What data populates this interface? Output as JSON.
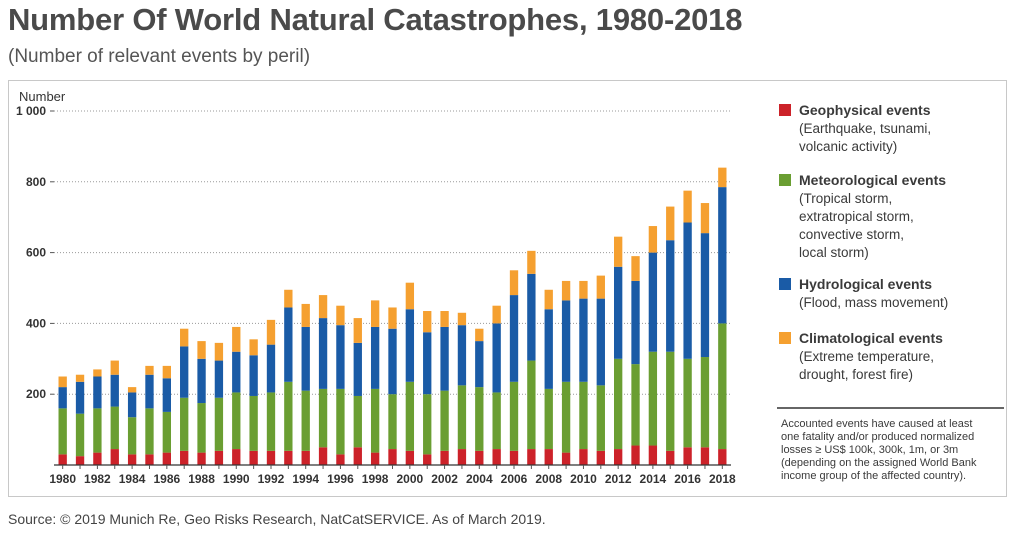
{
  "title": "Number Of World Natural Catastrophes, 1980-2018",
  "subtitle": "(Number of relevant events by peril)",
  "source": "Source: © 2019 Munich Re, Geo Risks Research, NatCatSERVICE. As of March 2019.",
  "note_lines": [
    "Accounted events have caused at least",
    "one fatality and/or produced normalized",
    "losses ≥ US$ 100k, 300k, 1m, or 3m",
    "(depending on the assigned World Bank",
    "income group of the affected country)."
  ],
  "legend": [
    {
      "title": "Geophysical events",
      "desc": [
        "(Earthquake, tsunami,",
        "volcanic activity)"
      ],
      "color": "#cc2229"
    },
    {
      "title": "Meteorological events",
      "desc": [
        "(Tropical storm,",
        "extratropical storm,",
        "convective storm,",
        "local storm)"
      ],
      "color": "#6a9e32"
    },
    {
      "title": "Hydrological events",
      "desc": [
        "(Flood, mass movement)"
      ],
      "color": "#1a5ba6"
    },
    {
      "title": "Climatological events",
      "desc": [
        "(Extreme temperature,",
        "drought, forest fire)"
      ],
      "color": "#f5a030"
    }
  ],
  "chart_data": {
    "type": "bar",
    "stacked": true,
    "title": "Number Of World Natural Catastrophes, 1980-2018",
    "ylabel": "Number",
    "ylim": [
      0,
      1000
    ],
    "yticks": [
      200,
      400,
      600,
      800,
      1000
    ],
    "ytick_labels": [
      "200",
      "400",
      "600",
      "800",
      "1 000"
    ],
    "grid": "horizontal dotted",
    "legend_position": "right",
    "categories": [
      1980,
      1981,
      1982,
      1983,
      1984,
      1985,
      1986,
      1987,
      1988,
      1989,
      1990,
      1991,
      1992,
      1993,
      1994,
      1995,
      1996,
      1997,
      1998,
      1999,
      2000,
      2001,
      2002,
      2003,
      2004,
      2005,
      2006,
      2007,
      2008,
      2009,
      2010,
      2011,
      2012,
      2013,
      2014,
      2015,
      2016,
      2017,
      2018
    ],
    "xtick_labels": [
      "1980",
      "1982",
      "1984",
      "1986",
      "1988",
      "1990",
      "1992",
      "1994",
      "1996",
      "1998",
      "2000",
      "2002",
      "2004",
      "2006",
      "2008",
      "2010",
      "2012",
      "2014",
      "2016",
      "2018"
    ],
    "series": [
      {
        "name": "Geophysical events",
        "color": "#cc2229",
        "values": [
          30,
          25,
          35,
          45,
          30,
          30,
          35,
          40,
          35,
          40,
          45,
          40,
          40,
          40,
          40,
          50,
          30,
          50,
          35,
          45,
          40,
          30,
          40,
          45,
          40,
          45,
          40,
          45,
          45,
          35,
          45,
          40,
          45,
          55,
          55,
          40,
          50,
          50,
          45
        ]
      },
      {
        "name": "Meteorological events",
        "color": "#6a9e32",
        "values": [
          130,
          120,
          125,
          120,
          105,
          130,
          115,
          150,
          140,
          150,
          160,
          155,
          165,
          195,
          170,
          165,
          185,
          145,
          180,
          155,
          195,
          170,
          170,
          180,
          180,
          160,
          195,
          250,
          170,
          200,
          190,
          185,
          255,
          230,
          265,
          280,
          250,
          255,
          355
        ]
      },
      {
        "name": "Hydrological events",
        "color": "#1a5ba6",
        "values": [
          60,
          90,
          90,
          90,
          70,
          95,
          95,
          145,
          125,
          105,
          115,
          115,
          135,
          210,
          180,
          200,
          180,
          150,
          175,
          185,
          205,
          175,
          180,
          170,
          130,
          195,
          245,
          245,
          225,
          230,
          235,
          245,
          260,
          235,
          280,
          315,
          385,
          350,
          385
        ]
      },
      {
        "name": "Climatological events",
        "color": "#f5a030",
        "values": [
          30,
          20,
          20,
          40,
          15,
          25,
          35,
          50,
          50,
          50,
          70,
          45,
          70,
          50,
          65,
          65,
          55,
          70,
          75,
          60,
          75,
          60,
          45,
          35,
          35,
          50,
          70,
          65,
          55,
          55,
          50,
          65,
          85,
          70,
          75,
          95,
          90,
          85,
          55
        ]
      }
    ]
  }
}
